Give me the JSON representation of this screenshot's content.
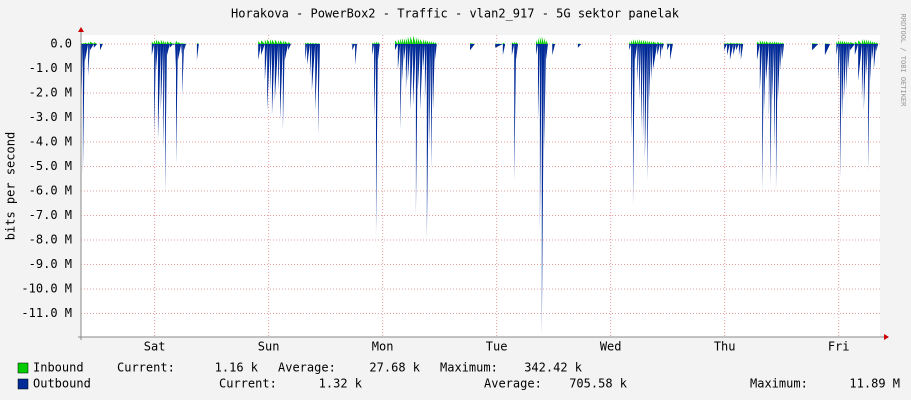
{
  "chart_data": {
    "type": "area",
    "title": "Horakova - PowerBox2 - Traffic - vlan2_917 - 5G sektor panelak",
    "y_label": "bits per second",
    "watermark": "RRDTOOL / TOBI OETIKER",
    "grid": true,
    "xlim": [
      0,
      168.2
    ],
    "xticks": [
      {
        "value": 15.5,
        "label": "Sat"
      },
      {
        "value": 39.5,
        "label": "Sun"
      },
      {
        "value": 63.5,
        "label": "Mon"
      },
      {
        "value": 87.5,
        "label": "Tue"
      },
      {
        "value": 111.5,
        "label": "Wed"
      },
      {
        "value": 135.5,
        "label": "Thu"
      },
      {
        "value": 159.5,
        "label": "Fri"
      }
    ],
    "ylim": [
      -11960000,
      370000
    ],
    "yticks": [
      {
        "value": 0,
        "label": "0.0"
      },
      {
        "value": -1000000,
        "label": "-1.0 M"
      },
      {
        "value": -2000000,
        "label": "-2.0 M"
      },
      {
        "value": -3000000,
        "label": "-3.0 M"
      },
      {
        "value": -4000000,
        "label": "-4.0 M"
      },
      {
        "value": -5000000,
        "label": "-5.0 M"
      },
      {
        "value": -6000000,
        "label": "-6.0 M"
      },
      {
        "value": -7000000,
        "label": "-7.0 M"
      },
      {
        "value": -8000000,
        "label": "-8.0 M"
      },
      {
        "value": -9000000,
        "label": "-9.0 M"
      },
      {
        "value": -10000000,
        "label": "-10.0 M"
      },
      {
        "value": -11000000,
        "label": "-11.0 M"
      }
    ],
    "x": [
      0,
      0.4,
      0.8,
      1.5,
      1.9,
      2.7,
      3.4,
      4.0,
      4.6,
      14.5,
      14.9,
      15.4,
      15.8,
      16.2,
      16.8,
      17.3,
      17.7,
      18.1,
      18.7,
      19.4,
      19.8,
      20.0,
      20.4,
      21.1,
      21.3,
      21.7,
      22.1,
      24.0,
      24.4,
      24.8,
      36.6,
      37.3,
      37.9,
      38.7,
      39.2,
      39.8,
      40.2,
      40.8,
      41.5,
      41.9,
      42.5,
      42.9,
      43.6,
      44.2,
      46.7,
      47.2,
      47.6,
      48.2,
      48.6,
      49.3,
      49.9,
      50.3,
      57.1,
      57.7,
      58.1,
      61.3,
      61.7,
      62.1,
      62.5,
      62.9,
      65.7,
      66.1,
      66.7,
      67.2,
      67.6,
      68.0,
      68.4,
      68.8,
      69.3,
      69.9,
      70.5,
      70.9,
      71.4,
      72.0,
      72.4,
      72.8,
      73.3,
      73.7,
      74.1,
      74.5,
      74.9,
      81.9,
      82.9,
      87.2,
      88.8,
      89.3,
      90.7,
      91.2,
      91.6,
      92.0,
      95.4,
      95.8,
      96.2,
      96.6,
      97.0,
      97.5,
      97.9,
      98.3,
      99.2,
      99.8,
      104.6,
      105.3,
      115.4,
      115.8,
      116.2,
      116.6,
      117.1,
      117.5,
      117.9,
      118.3,
      118.7,
      119.2,
      119.6,
      120.0,
      120.4,
      121.3,
      121.9,
      122.3,
      122.7,
      123.4,
      124.0,
      124.6,
      135.4,
      136.0,
      136.6,
      137.3,
      137.9,
      138.5,
      138.9,
      139.4,
      141.9,
      142.3,
      142.9,
      143.4,
      143.8,
      144.2,
      144.8,
      145.1,
      145.5,
      145.9,
      146.3,
      146.7,
      147.2,
      147.6,
      148.0,
      153.9,
      155.2,
      156.6,
      157.7,
      159.0,
      159.4,
      159.8,
      160.2,
      160.6,
      161.1,
      161.5,
      161.9,
      162.9,
      163.6,
      164.4,
      164.8,
      165.3,
      165.7,
      166.1,
      166.5,
      166.9,
      167.4,
      167.8
    ],
    "series": [
      {
        "name": "Outbound",
        "color": "#002a97",
        "stats": [
          {
            "label": "Current:",
            "value": "1.32 k"
          },
          {
            "label": "Average:",
            "value": "705.58 k"
          },
          {
            "label": "Maximum:",
            "value": "11.89 M"
          }
        ],
        "values": [
          -2700000,
          -5300000,
          -700000,
          -1300000,
          -250000,
          -150000,
          0,
          -250000,
          0,
          0,
          -450000,
          -3700000,
          -1050000,
          -3900000,
          -2700000,
          -4300000,
          -6100000,
          -450000,
          -150000,
          -50000,
          -1050000,
          -4900000,
          -650000,
          -450000,
          -2100000,
          -250000,
          0,
          0,
          -650000,
          0,
          0,
          -650000,
          -450000,
          -1500000,
          -2700000,
          -1900000,
          -2900000,
          -2300000,
          -1900000,
          -3100000,
          -3500000,
          -650000,
          -250000,
          0,
          0,
          -650000,
          -850000,
          -1300000,
          -1900000,
          -2700000,
          -3700000,
          0,
          -250000,
          -850000,
          0,
          -450000,
          -3100000,
          -7800000,
          -650000,
          0,
          0,
          -250000,
          -1050000,
          -3500000,
          -1500000,
          -650000,
          -1900000,
          -1500000,
          -2700000,
          -2500000,
          -7000000,
          -1900000,
          -2700000,
          -1050000,
          -2300000,
          -8000000,
          -4300000,
          -5100000,
          -2700000,
          -650000,
          0,
          -250000,
          0,
          -150000,
          -450000,
          0,
          -450000,
          -5600000,
          -650000,
          0,
          0,
          -450000,
          -3100000,
          -7600000,
          -11890000,
          -4300000,
          -650000,
          0,
          -450000,
          0,
          -150000,
          0,
          -250000,
          -3900000,
          -6600000,
          -650000,
          -1500000,
          -2300000,
          -3500000,
          -3900000,
          -4700000,
          -5600000,
          -2300000,
          -1500000,
          -1050000,
          -450000,
          -650000,
          -250000,
          0,
          -250000,
          -650000,
          0,
          -250000,
          -450000,
          -650000,
          -450000,
          -250000,
          -450000,
          -650000,
          0,
          0,
          -650000,
          -1900000,
          -6000000,
          -2700000,
          -1500000,
          -3100000,
          -5800000,
          -2300000,
          -4300000,
          -6000000,
          -2300000,
          -1050000,
          -650000,
          0,
          -250000,
          0,
          -450000,
          0,
          -450000,
          -1500000,
          -5500000,
          -3100000,
          -2300000,
          -1900000,
          -1050000,
          -250000,
          -450000,
          -1500000,
          -2300000,
          -2700000,
          -1300000,
          -5200000,
          -1500000,
          -650000,
          -1050000,
          -300000,
          -100000
        ]
      },
      {
        "name": "Inbound",
        "color": "#00cc00",
        "stats": [
          {
            "label": "Current:",
            "value": "1.16 k"
          },
          {
            "label": "Average:",
            "value": "27.68 k"
          },
          {
            "label": "Maximum:",
            "value": "342.42 k"
          }
        ],
        "values": [
          50000,
          50000,
          60000,
          80000,
          100000,
          80000,
          0,
          20000,
          0,
          0,
          100000,
          150000,
          200000,
          150000,
          180000,
          150000,
          100000,
          120000,
          100000,
          30000,
          100000,
          150000,
          80000,
          60000,
          50000,
          30000,
          0,
          0,
          50000,
          0,
          0,
          120000,
          150000,
          180000,
          200000,
          200000,
          180000,
          180000,
          160000,
          150000,
          150000,
          120000,
          80000,
          0,
          0,
          60000,
          60000,
          60000,
          50000,
          50000,
          40000,
          0,
          20000,
          20000,
          0,
          60000,
          80000,
          100000,
          80000,
          0,
          0,
          150000,
          200000,
          220000,
          250000,
          220000,
          250000,
          300000,
          320000,
          342420,
          300000,
          250000,
          200000,
          200000,
          180000,
          150000,
          130000,
          120000,
          100000,
          80000,
          0,
          40000,
          0,
          20000,
          60000,
          0,
          80000,
          100000,
          80000,
          0,
          0,
          150000,
          250000,
          300000,
          300000,
          250000,
          150000,
          0,
          30000,
          0,
          20000,
          0,
          80000,
          150000,
          200000,
          180000,
          200000,
          200000,
          180000,
          180000,
          160000,
          150000,
          140000,
          120000,
          100000,
          100000,
          80000,
          60000,
          0,
          30000,
          30000,
          0,
          40000,
          50000,
          60000,
          50000,
          50000,
          40000,
          40000,
          0,
          0,
          100000,
          150000,
          150000,
          120000,
          120000,
          120000,
          100000,
          100000,
          120000,
          100000,
          80000,
          80000,
          60000,
          0,
          40000,
          0,
          30000,
          0,
          100000,
          150000,
          150000,
          150000,
          120000,
          120000,
          100000,
          80000,
          100000,
          150000,
          200000,
          200000,
          200000,
          180000,
          150000,
          120000,
          100000,
          80000,
          60000
        ]
      }
    ]
  }
}
